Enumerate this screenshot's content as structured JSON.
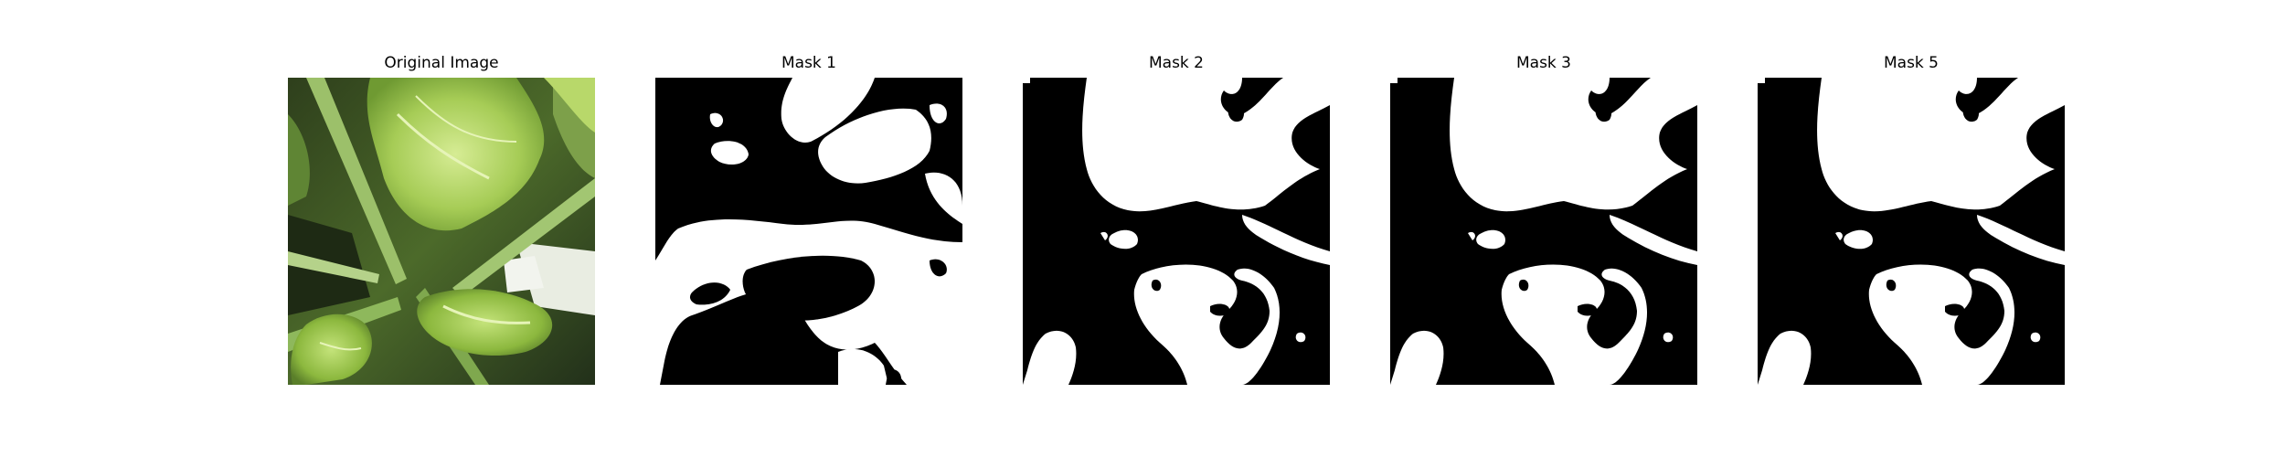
{
  "figure": {
    "panels": [
      {
        "title": "Original Image",
        "kind": "photo",
        "subject": "leaf-plant-photo"
      },
      {
        "title": "Mask 1",
        "kind": "mask",
        "variant": 1
      },
      {
        "title": "Mask 2",
        "kind": "mask",
        "variant": 2
      },
      {
        "title": "Mask 3",
        "kind": "mask",
        "variant": 3
      },
      {
        "title": "Mask 5",
        "kind": "mask",
        "variant": 5
      }
    ],
    "colors": {
      "background": "#ffffff",
      "mask_foreground": "#ffffff",
      "mask_background": "#000000",
      "leaf_light": "#b8d86a",
      "leaf_mid": "#8cb83e",
      "leaf_dark": "#3d5a22",
      "shadow": "#1a2410"
    }
  }
}
